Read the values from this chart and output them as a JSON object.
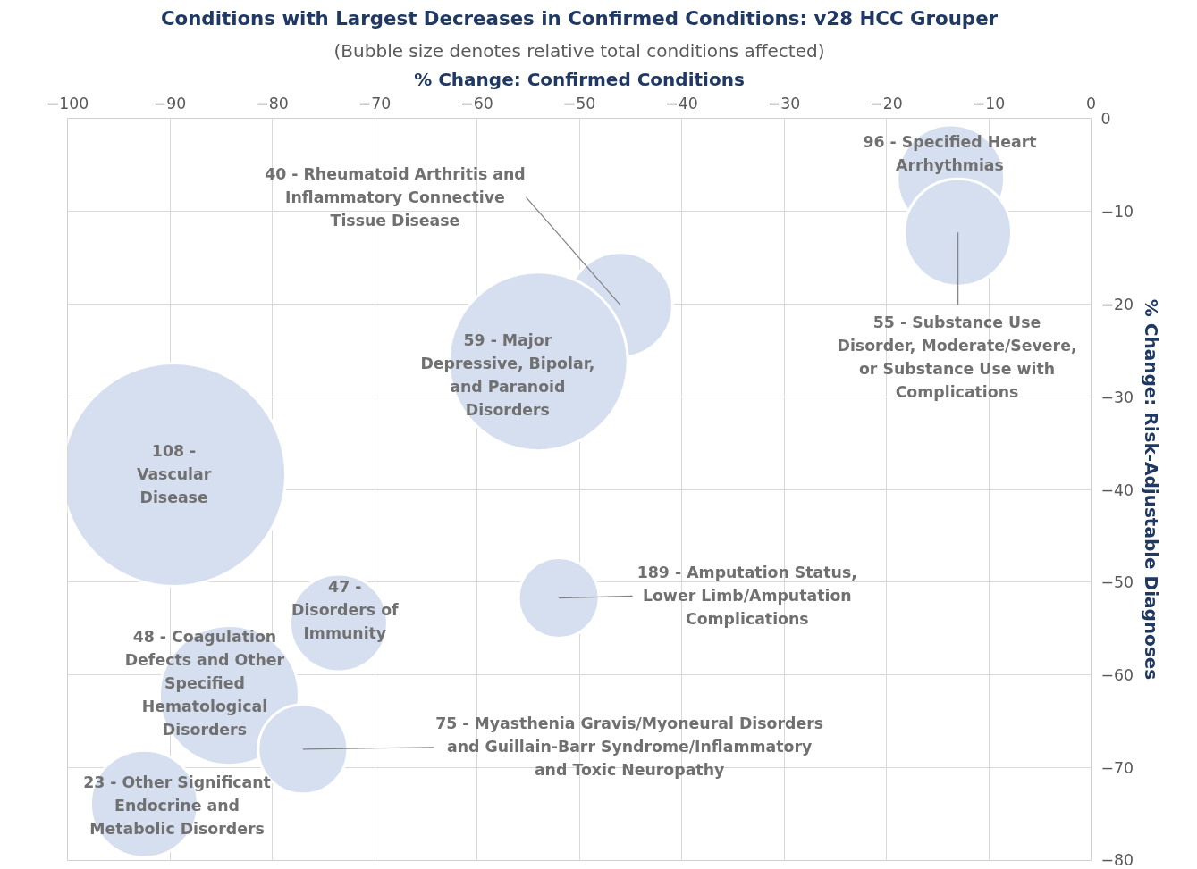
{
  "chart_data": {
    "type": "bubble",
    "title": "Conditions with Largest Decreases in Confirmed Conditions: v28 HCC Grouper",
    "subtitle": "(Bubble size denotes relative total conditions affected)",
    "xlabel": "% Change: Confirmed Conditions",
    "ylabel": "% Change: Risk-Adjustable Diagnoses",
    "x": [
      -13.7,
      -13.0,
      -46.0,
      -54.0,
      -89.6,
      -52.0,
      -73.5,
      -84.2,
      -77.0,
      -92.5
    ],
    "series": [
      {
        "color": "#d6dff0",
        "values": [
          -6.5,
          -12.3,
          -20.1,
          -26.2,
          -38.4,
          -51.7,
          -54.4,
          -62.2,
          -68.0,
          -73.9
        ],
        "sizes": [
          0.23,
          0.23,
          0.22,
          0.64,
          1,
          0.13,
          0.19,
          0.39,
          0.16,
          0.23
        ]
      }
    ],
    "xlim": [
      -100,
      0
    ],
    "ylim": [
      -80,
      0
    ],
    "xticks": [
      -100,
      -90,
      -80,
      -70,
      -60,
      -50,
      -40,
      -30,
      -20,
      -10,
      0
    ],
    "yticks": [
      -80,
      -70,
      -60,
      -50,
      -40,
      -30,
      -20,
      -10,
      0
    ],
    "grid": true,
    "annotations": [
      {
        "text": "96 - Specified Heart\nArrhythmias",
        "x": -13.7,
        "y": -6.5
      },
      {
        "text": "55 - Substance Use\nDisorder, Moderate/Severe,\nor Substance Use with\nComplications",
        "x": -13.0,
        "y": -12.3
      },
      {
        "text": "40 - Rheumatoid Arthritis and\nInflammatory Connective\nTissue Disease",
        "x": -46.0,
        "y": -20.1
      },
      {
        "text": "59 - Major\nDepressive, Bipolar,\nand Paranoid\nDisorders",
        "x": -54.0,
        "y": -26.2
      },
      {
        "text": "108 -\nVascular\nDisease",
        "x": -89.6,
        "y": -38.4
      },
      {
        "text": "189 - Amputation Status,\nLower Limb/Amputation\nComplications",
        "x": -52.0,
        "y": -51.7
      },
      {
        "text": "47 -\nDisorders of\nImmunity",
        "x": -73.5,
        "y": -54.4
      },
      {
        "text": "48 - Coagulation\nDefects and Other\nSpecified\nHematological\nDisorders",
        "x": -84.2,
        "y": -62.2
      },
      {
        "text": "75 - Myasthenia Gravis/Myoneural Disorders\nand Guillain-Barr Syndrome/Inflammatory\nand Toxic Neuropathy",
        "x": -77.0,
        "y": -68.0
      },
      {
        "text": "23 - Other Significant\nEndocrine and\nMetabolic Disorders",
        "x": -92.5,
        "y": -73.9
      }
    ]
  }
}
